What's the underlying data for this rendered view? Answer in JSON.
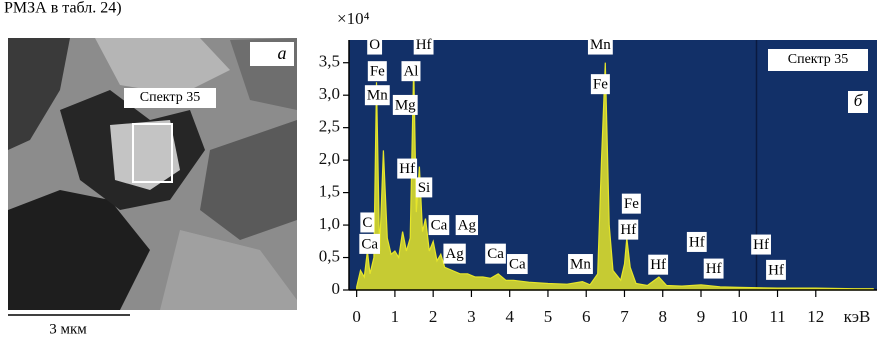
{
  "header": {
    "text": "РМЗА в табл. 24)"
  },
  "image_panel": {
    "panel_label": "а",
    "spot_label": "Спектр 35",
    "scale_label": "3 мкм"
  },
  "chart_data": {
    "type": "spectrum",
    "panel_label": "б",
    "legend_label": "Спектр 35",
    "y_multiplier": "×10⁴",
    "x_label": "кэВ",
    "color": "#e6e62a",
    "background": "#123068",
    "xlim": [
      -0.2,
      13.6
    ],
    "ylim": [
      0,
      3.85
    ],
    "xticks": [
      0,
      1,
      2,
      3,
      4,
      5,
      6,
      7,
      8,
      9,
      10,
      11,
      12
    ],
    "yticks": [
      0,
      {
        "value": 0.5,
        "label": "0,5"
      },
      {
        "value": 1.0,
        "label": "1,0"
      },
      {
        "value": 1.5,
        "label": "1,5"
      },
      {
        "value": 2.0,
        "label": "2,0"
      },
      {
        "value": 2.5,
        "label": "2,5"
      },
      {
        "value": 3.0,
        "label": "3,0"
      },
      {
        "value": 3.5,
        "label": "3,5"
      }
    ],
    "x": [
      0,
      0.1,
      0.2,
      0.28,
      0.35,
      0.45,
      0.52,
      0.6,
      0.7,
      0.8,
      0.9,
      1.0,
      1.1,
      1.2,
      1.25,
      1.3,
      1.4,
      1.49,
      1.56,
      1.64,
      1.72,
      1.8,
      1.9,
      2.0,
      2.1,
      2.2,
      2.3,
      2.5,
      2.7,
      2.9,
      3.1,
      3.3,
      3.5,
      3.7,
      3.9,
      4.1,
      4.5,
      5.0,
      5.5,
      5.9,
      6.1,
      6.3,
      6.4,
      6.5,
      6.6,
      6.7,
      6.9,
      7.0,
      7.06,
      7.15,
      7.3,
      7.6,
      7.9,
      8.1,
      8.5,
      9.0,
      9.5,
      10,
      11,
      12,
      13,
      13.5
    ],
    "values": [
      0.05,
      0.3,
      0.2,
      0.6,
      0.25,
      0.5,
      3.2,
      0.6,
      2.15,
      0.8,
      0.55,
      0.6,
      0.5,
      0.9,
      0.75,
      0.6,
      0.8,
      3.45,
      1.2,
      1.9,
      0.9,
      1.1,
      0.6,
      0.75,
      0.45,
      0.55,
      0.35,
      0.3,
      0.25,
      0.25,
      0.2,
      0.2,
      0.18,
      0.25,
      0.15,
      0.15,
      0.12,
      0.1,
      0.09,
      0.13,
      0.08,
      0.25,
      2.0,
      3.5,
      1.0,
      0.3,
      0.15,
      0.4,
      0.8,
      0.35,
      0.1,
      0.07,
      0.2,
      0.07,
      0.06,
      0.08,
      0.05,
      0.04,
      0.03,
      0.03,
      0.02,
      0.02
    ],
    "annotations": [
      {
        "text": "O",
        "x": 0.47,
        "y": 3.78
      },
      {
        "text": "Fe",
        "x": 0.54,
        "y": 3.37
      },
      {
        "text": "Mn",
        "x": 0.54,
        "y": 3.0
      },
      {
        "text": "Hf",
        "x": 1.75,
        "y": 3.78
      },
      {
        "text": "Al",
        "x": 1.42,
        "y": 3.37
      },
      {
        "text": "Mg",
        "x": 1.27,
        "y": 2.85
      },
      {
        "text": "Hf",
        "x": 1.32,
        "y": 1.87
      },
      {
        "text": "Si",
        "x": 1.76,
        "y": 1.58
      },
      {
        "text": "C",
        "x": 0.28,
        "y": 1.04
      },
      {
        "text": "Ca",
        "x": 0.34,
        "y": 0.71
      },
      {
        "text": "Ca",
        "x": 2.15,
        "y": 1.0
      },
      {
        "text": "Ag",
        "x": 2.88,
        "y": 1.0
      },
      {
        "text": "Ag",
        "x": 2.56,
        "y": 0.56
      },
      {
        "text": "Ca",
        "x": 3.63,
        "y": 0.56
      },
      {
        "text": "Ca",
        "x": 4.2,
        "y": 0.4
      },
      {
        "text": "Mn",
        "x": 5.85,
        "y": 0.4
      },
      {
        "text": "Mn",
        "x": 6.37,
        "y": 3.78
      },
      {
        "text": "Fe",
        "x": 6.37,
        "y": 3.17
      },
      {
        "text": "Fe",
        "x": 7.18,
        "y": 1.33
      },
      {
        "text": "Hf",
        "x": 7.1,
        "y": 0.93
      },
      {
        "text": "Hf",
        "x": 7.88,
        "y": 0.39
      },
      {
        "text": "Hf",
        "x": 8.89,
        "y": 0.74
      },
      {
        "text": "Hf",
        "x": 9.33,
        "y": 0.33
      },
      {
        "text": "Hf",
        "x": 10.57,
        "y": 0.7
      },
      {
        "text": "Hf",
        "x": 10.96,
        "y": 0.31
      }
    ]
  }
}
